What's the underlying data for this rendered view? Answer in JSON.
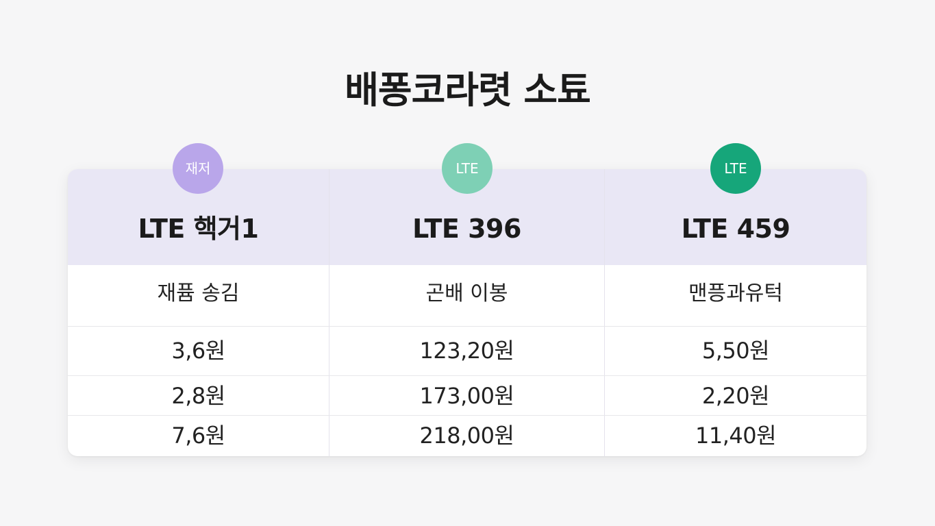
{
  "title": "배퐁코라렷 소툐",
  "columns": [
    {
      "badge": {
        "label": "재저",
        "color": "#b9a6ea"
      },
      "plan": "LTE 핵거1",
      "subtitle": "재퓸 송김",
      "prices": [
        "3,6원",
        "2,8원",
        "7,6원"
      ]
    },
    {
      "badge": {
        "label": "LTE",
        "color": "#7ed0b5"
      },
      "plan": "LTE 396",
      "subtitle": "곤배 이봉",
      "prices": [
        "123,20원",
        "173,00원",
        "218,00원"
      ]
    },
    {
      "badge": {
        "label": "LTE",
        "color": "#16a67a"
      },
      "plan": "LTE 459",
      "subtitle": "맨픙과유턱",
      "prices": [
        "5,50원",
        "2,20원",
        "11,40원"
      ]
    }
  ]
}
